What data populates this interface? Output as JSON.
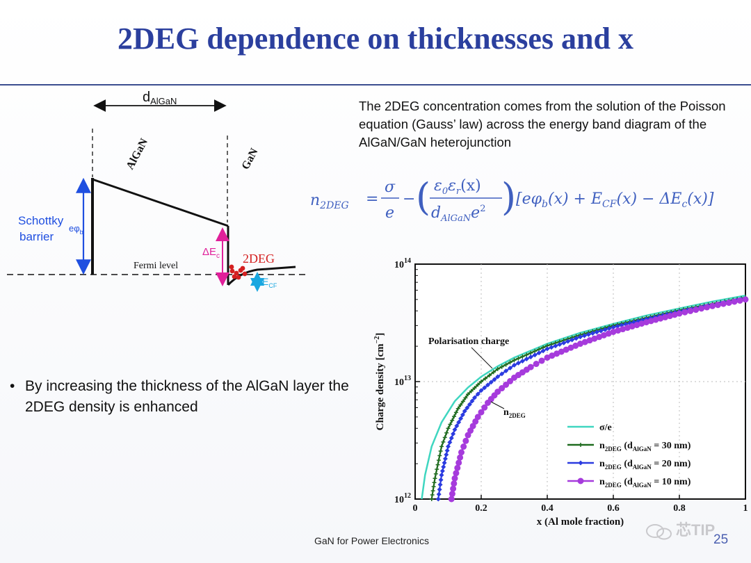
{
  "slide": {
    "title": "2DEG dependence on thicknesses and x",
    "intro": "The 2DEG concentration comes from the solution of the Poisson equation (Gauss’ law) across the energy band diagram of the AlGaN/GaN heterojunction",
    "formula": {
      "lhs": "n",
      "lhs_sub": "2DEG",
      "sigma": "σ",
      "e": "e",
      "eps_num": "ε",
      "eps_sub0": "0",
      "eps_r": "ε",
      "eps_subr": "r",
      "eps_x": "(x)",
      "den_d": "d",
      "den_sub": "AlGaN",
      "den_e2": "e",
      "bracket": "[eφ",
      "b_sub": "b",
      "mid": "(x) + E",
      "cf_sub": "CF",
      "tail": "(x) − ΔE",
      "c_sub": "c",
      "end": "(x)]"
    },
    "bullet": "By increasing the thickness of the AlGaN layer the 2DEG density is enhanced",
    "footer": "GaN for Power Electronics",
    "page_number": "25",
    "watermark": "芯TIP"
  },
  "band_diagram": {
    "d_label": "d",
    "d_sub": "AlGaN",
    "algan_label": "AlGaN",
    "gan_label": "GaN",
    "schottky_label_1": "Schottky",
    "schottky_label_2": "barrier",
    "ephi_label": "eφ",
    "ephi_sub": "b",
    "delta_ec_label": "ΔE",
    "delta_ec_sub": "c",
    "twodeg_label": "2DEG",
    "fermi_label": "Fermi level",
    "ecf_label": "E",
    "ecf_sub": "CF",
    "colors": {
      "schottky": "#1f4fe0",
      "delta": "#e0209a",
      "twodeg": "#d42020",
      "ecf": "#19a7e0"
    }
  },
  "chart_data": {
    "type": "line",
    "x_scale": "linear",
    "y_scale": "log",
    "xlabel": "x (Al mole fraction)",
    "ylabel": "Charge density [cm",
    "ylabel_sup": "−2",
    "ylabel_end": "]",
    "xlim": [
      0,
      1
    ],
    "ylim": [
      1000000000000.0,
      100000000000000.0
    ],
    "x_ticks": [
      "0",
      "0.2",
      "0.4",
      "0.6",
      "0.8",
      "1"
    ],
    "y_ticks": [
      {
        "base": "10",
        "exp": "12"
      },
      {
        "base": "10",
        "exp": "13"
      },
      {
        "base": "10",
        "exp": "14"
      }
    ],
    "annotations": [
      {
        "text": "Polarisation charge"
      },
      {
        "text": "n",
        "sub": "2DEG"
      }
    ],
    "legend_position": "bottom-right",
    "series": [
      {
        "name": "σ/e",
        "color": "#3fd6c0",
        "marker": "none",
        "x": [
          0.02,
          0.03,
          0.05,
          0.08,
          0.12,
          0.16,
          0.2,
          0.25,
          0.3,
          0.4,
          0.5,
          0.6,
          0.7,
          0.8,
          0.9,
          1.0
        ],
        "y": [
          1000000000000.0,
          1600000000000.0,
          2800000000000.0,
          4500000000000.0,
          6800000000000.0,
          8900000000000.0,
          11000000000000.0,
          13500000000000.0,
          16000000000000.0,
          21000000000000.0,
          26000000000000.0,
          31000000000000.0,
          36500000000000.0,
          42000000000000.0,
          48000000000000.0,
          54000000000000.0
        ]
      },
      {
        "name": "n2DEG (dAlGaN = 30 nm)",
        "legend_main": "n",
        "legend_sub": "2DEG",
        "legend_rest": "(d",
        "legend_sub2": "AlGaN",
        "legend_end": " = 30 nm)",
        "color": "#1f6b1f",
        "marker": "plus",
        "x": [
          0.05,
          0.06,
          0.08,
          0.1,
          0.13,
          0.16,
          0.2,
          0.25,
          0.3,
          0.4,
          0.5,
          0.6,
          0.7,
          0.8,
          0.9,
          1.0
        ],
        "y": [
          1000000000000.0,
          1500000000000.0,
          2800000000000.0,
          4000000000000.0,
          5900000000000.0,
          7800000000000.0,
          10000000000000.0,
          12800000000000.0,
          15200000000000.0,
          20200000000000.0,
          25000000000000.0,
          30000000000000.0,
          35000000000000.0,
          40500000000000.0,
          46000000000000.0,
          52000000000000.0
        ]
      },
      {
        "name": "n2DEG (dAlGaN = 20 nm)",
        "legend_main": "n",
        "legend_sub": "2DEG",
        "legend_rest": "(d",
        "legend_sub2": "AlGaN",
        "legend_end": " = 20 nm)",
        "color": "#2b3be0",
        "marker": "diamond",
        "x": [
          0.07,
          0.08,
          0.1,
          0.12,
          0.15,
          0.18,
          0.2,
          0.25,
          0.3,
          0.4,
          0.5,
          0.6,
          0.7,
          0.8,
          0.9,
          1.0
        ],
        "y": [
          1000000000000.0,
          1600000000000.0,
          2800000000000.0,
          3900000000000.0,
          5600000000000.0,
          7300000000000.0,
          8400000000000.0,
          11000000000000.0,
          13800000000000.0,
          19000000000000.0,
          24000000000000.0,
          29000000000000.0,
          34000000000000.0,
          39500000000000.0,
          45000000000000.0,
          51000000000000.0
        ]
      },
      {
        "name": "n2DEG (dAlGaN = 10 nm)",
        "legend_main": "n",
        "legend_sub": "2DEG",
        "legend_rest": "(d",
        "legend_sub2": "AlGaN",
        "legend_end": " = 10 nm)",
        "color": "#a63bdc",
        "marker": "circle",
        "x": [
          0.11,
          0.12,
          0.14,
          0.16,
          0.19,
          0.22,
          0.25,
          0.3,
          0.35,
          0.4,
          0.5,
          0.6,
          0.7,
          0.8,
          0.9,
          1.0
        ],
        "y": [
          1000000000000.0,
          1500000000000.0,
          2500000000000.0,
          3500000000000.0,
          5000000000000.0,
          6600000000000.0,
          8200000000000.0,
          10800000000000.0,
          13300000000000.0,
          16000000000000.0,
          21000000000000.0,
          26500000000000.0,
          32000000000000.0,
          38000000000000.0,
          44000000000000.0,
          50000000000000.0
        ]
      }
    ]
  }
}
